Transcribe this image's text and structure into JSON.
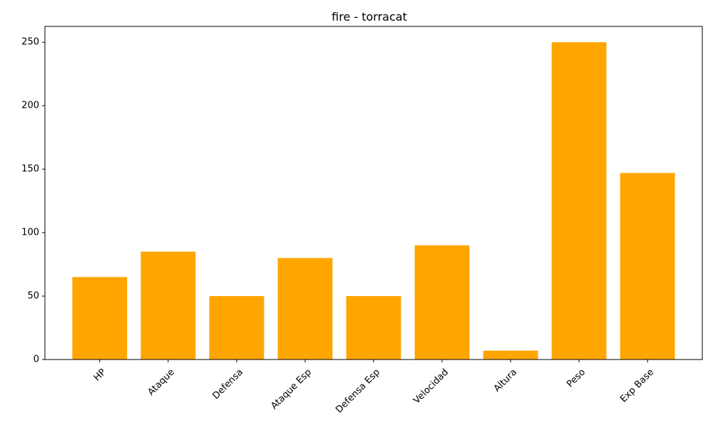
{
  "chart_data": {
    "type": "bar",
    "title": "fire - torracat",
    "xlabel": "",
    "ylabel": "",
    "categories": [
      "HP",
      "Ataque",
      "Defensa",
      "Ataque Esp",
      "Defensa Esp",
      "Velocidad",
      "Altura",
      "Peso",
      "Exp Base"
    ],
    "values": [
      65,
      85,
      50,
      80,
      50,
      90,
      7,
      250,
      147
    ],
    "ylim": [
      0,
      262.5
    ],
    "yticks": [
      0,
      50,
      100,
      150,
      200,
      250
    ],
    "ytick_labels": [
      "0",
      "50",
      "100",
      "150",
      "200",
      "250"
    ],
    "xtick_rotation": 45,
    "grid": false,
    "legend": "none",
    "colors": {
      "bar": "#FFA500",
      "axis": "#000000",
      "background": "#FFFFFF"
    }
  }
}
